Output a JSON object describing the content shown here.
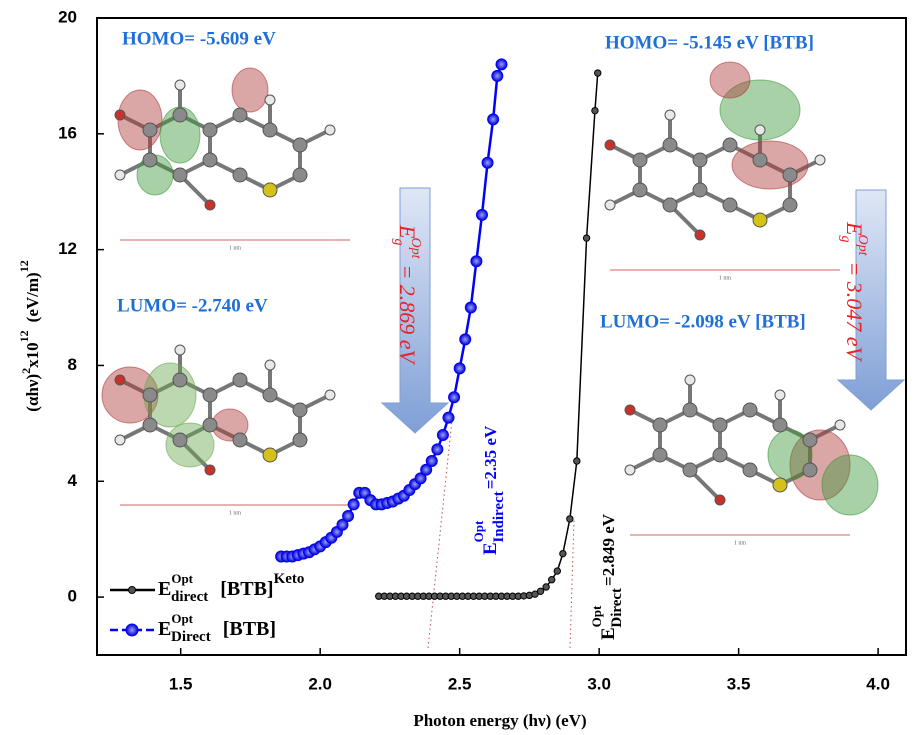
{
  "chart_data": {
    "type": "scatter-line",
    "x_label": "Photon energy (hν) (eV)",
    "y_label": {
      "base": "(αhν)",
      "sup1": "2",
      "mid": "x10",
      "sup2": "12",
      "unit": "(eV/m)",
      "sup3": "12"
    },
    "xlim": [
      1.2,
      4.1
    ],
    "ylim": [
      -2,
      20
    ],
    "xticks": [
      1.5,
      {
        "value": 2,
        "label": "2.0"
      },
      2.5,
      {
        "value": 3,
        "label": "3.0"
      },
      3.5,
      {
        "value": 4,
        "label": "4.0"
      }
    ],
    "yticks": [
      0,
      4,
      8,
      12,
      16,
      20
    ],
    "series": [
      {
        "name": "E",
        "sup": "Opt",
        "sub": "direct",
        "suffix": "[BTB]",
        "suffix_sup": "Keto",
        "color": "#000000",
        "x": [
          2.21,
          2.23,
          2.25,
          2.27,
          2.29,
          2.31,
          2.33,
          2.35,
          2.37,
          2.39,
          2.41,
          2.43,
          2.45,
          2.47,
          2.49,
          2.51,
          2.53,
          2.55,
          2.57,
          2.59,
          2.61,
          2.63,
          2.65,
          2.67,
          2.69,
          2.71,
          2.73,
          2.75,
          2.77,
          2.79,
          2.81,
          2.83,
          2.85,
          2.87,
          2.895,
          2.92,
          2.955,
          2.985,
          2.995
        ],
        "values": [
          0.03,
          0.03,
          0.03,
          0.03,
          0.03,
          0.03,
          0.03,
          0.03,
          0.03,
          0.03,
          0.03,
          0.03,
          0.03,
          0.03,
          0.03,
          0.03,
          0.03,
          0.03,
          0.03,
          0.03,
          0.03,
          0.03,
          0.03,
          0.03,
          0.03,
          0.03,
          0.04,
          0.06,
          0.1,
          0.2,
          0.35,
          0.6,
          0.9,
          1.5,
          2.7,
          4.7,
          12.4,
          16.8,
          18.1
        ]
      },
      {
        "name": "E",
        "sup": "Opt",
        "sub": "Direct",
        "suffix": "[BTB]",
        "color": "#0000ff",
        "x": [
          1.86,
          1.88,
          1.9,
          1.92,
          1.94,
          1.96,
          1.98,
          2.0,
          2.02,
          2.04,
          2.06,
          2.08,
          2.1,
          2.12,
          2.14,
          2.16,
          2.18,
          2.2,
          2.22,
          2.24,
          2.26,
          2.28,
          2.3,
          2.32,
          2.34,
          2.36,
          2.38,
          2.4,
          2.42,
          2.44,
          2.46,
          2.48,
          2.5,
          2.52,
          2.54,
          2.56,
          2.58,
          2.6,
          2.62,
          2.635,
          2.65
        ],
        "values": [
          1.4,
          1.4,
          1.4,
          1.45,
          1.5,
          1.55,
          1.65,
          1.75,
          1.9,
          2.05,
          2.25,
          2.5,
          2.8,
          3.2,
          3.6,
          3.6,
          3.35,
          3.2,
          3.2,
          3.25,
          3.3,
          3.4,
          3.5,
          3.7,
          3.9,
          4.1,
          4.4,
          4.7,
          5.1,
          5.6,
          6.2,
          6.9,
          7.9,
          8.9,
          10.0,
          11.6,
          13.2,
          15.0,
          16.5,
          18.0,
          18.4
        ]
      }
    ],
    "annotations": [
      "HOMO= -5.609 eV",
      "LUMO= -2.740 eV",
      "HOMO= -5.145 eV [BTB]",
      "LUMO= -2.098 eV [BTB]"
    ],
    "gap_labels": [
      {
        "symbol": "E",
        "sub": "g",
        "sup": "Opt",
        "text": "= 2.869 eV"
      },
      {
        "symbol": "E",
        "sub": "g",
        "sup": "Opt",
        "text": "= 3.047 eV"
      }
    ],
    "edge_labels": [
      {
        "symbol": "E",
        "sup": "Opt",
        "sub": "Indirect",
        "text": "=2.35 eV"
      },
      {
        "symbol": "E",
        "sup": "Opt",
        "sub": "Direct",
        "text": "=2.849 eV"
      }
    ],
    "scale_label": "1 nm"
  }
}
